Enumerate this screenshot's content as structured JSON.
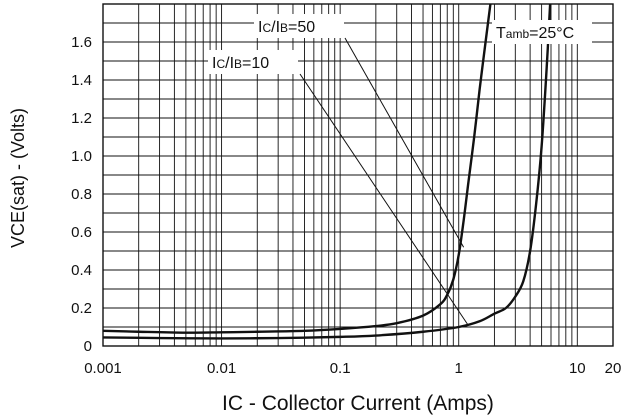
{
  "chart_data": {
    "type": "line",
    "title": "",
    "xlabel": "IC - Collector Current (Amps)",
    "ylabel": "VCE(sat) - (Volts)",
    "x_scale": "log",
    "xlim": [
      0.001,
      20
    ],
    "ylim": [
      0,
      1.8
    ],
    "x_ticks": [
      {
        "value": 0.001,
        "label": "0.001"
      },
      {
        "value": 0.01,
        "label": "0.01"
      },
      {
        "value": 0.1,
        "label": "0.1"
      },
      {
        "value": 1,
        "label": "1"
      },
      {
        "value": 10,
        "label": "10"
      },
      {
        "value": 20,
        "label": "20"
      }
    ],
    "y_ticks": [
      {
        "value": 0,
        "label": "0"
      },
      {
        "value": 0.2,
        "label": "0.2"
      },
      {
        "value": 0.4,
        "label": "0.4"
      },
      {
        "value": 0.6,
        "label": "0.6"
      },
      {
        "value": 0.8,
        "label": "0.8"
      },
      {
        "value": 1.0,
        "label": "1.0"
      },
      {
        "value": 1.2,
        "label": "1.2"
      },
      {
        "value": 1.4,
        "label": "1.4"
      },
      {
        "value": 1.6,
        "label": "1.6"
      }
    ],
    "grid": true,
    "series": [
      {
        "name": "IC/IB=50",
        "x": [
          0.001,
          0.002,
          0.005,
          0.01,
          0.02,
          0.05,
          0.1,
          0.2,
          0.3,
          0.5,
          0.7,
          0.8,
          0.9,
          1.0,
          1.1,
          1.2,
          1.35,
          1.5,
          1.7,
          1.85
        ],
        "y": [
          0.08,
          0.075,
          0.07,
          0.072,
          0.075,
          0.08,
          0.09,
          0.105,
          0.12,
          0.16,
          0.22,
          0.27,
          0.35,
          0.48,
          0.66,
          0.85,
          1.1,
          1.35,
          1.62,
          1.82
        ]
      },
      {
        "name": "IC/IB=10",
        "x": [
          0.001,
          0.003,
          0.01,
          0.03,
          0.1,
          0.2,
          0.5,
          1.0,
          1.5,
          2.0,
          2.5,
          3.0,
          3.5,
          4.0,
          4.5,
          5.0,
          5.5,
          5.9
        ],
        "y": [
          0.045,
          0.042,
          0.04,
          0.042,
          0.048,
          0.055,
          0.075,
          0.1,
          0.13,
          0.17,
          0.2,
          0.26,
          0.34,
          0.5,
          0.75,
          1.05,
          1.45,
          1.82
        ]
      }
    ],
    "annotations": [
      {
        "parts": [
          {
            "t": "I",
            "sub": false
          },
          {
            "t": "C",
            "sub": true
          },
          {
            "t": "/I",
            "sub": false
          },
          {
            "t": "B",
            "sub": true
          },
          {
            "t": "=50",
            "sub": false
          }
        ],
        "points_to": {
          "x": 1.1,
          "y": 0.52
        }
      },
      {
        "parts": [
          {
            "t": "I",
            "sub": false
          },
          {
            "t": "C",
            "sub": true
          },
          {
            "t": "/I",
            "sub": false
          },
          {
            "t": "B",
            "sub": true
          },
          {
            "t": "=10",
            "sub": false
          }
        ],
        "points_to": {
          "x": 1.2,
          "y": 0.11
        }
      },
      {
        "parts": [
          {
            "t": "T",
            "sub": false
          },
          {
            "t": "amb",
            "sub": true
          },
          {
            "t": "=25°C",
            "sub": false
          }
        ],
        "points_to": null
      }
    ],
    "colors": {
      "line": "#111111",
      "grid": "#111111",
      "background": "#ffffff"
    }
  }
}
